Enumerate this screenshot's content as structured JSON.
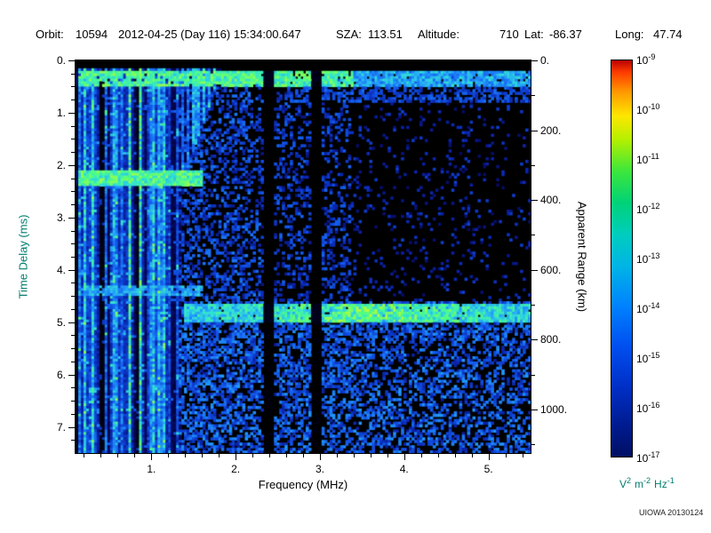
{
  "header": {
    "orbit_label": "Orbit:",
    "orbit_value": "10594",
    "datetime": "2012-04-25 (Day 116) 15:34:00.647",
    "sza_label": "SZA:",
    "sza_value": "113.51",
    "altitude_label": "Altitude:",
    "altitude_value": "710",
    "lat_label": "Lat:",
    "lat_value": "-86.37",
    "long_label": "Long:",
    "long_value": "47.74"
  },
  "chart_data": {
    "type": "heatmap",
    "xlabel": "Frequency (MHz)",
    "ylabel": "Time Delay (ms)",
    "y2label": "Apparent Range (km)",
    "x_range": [
      0.1,
      5.5
    ],
    "x_ticks": [
      "1.",
      "2.",
      "3.",
      "4.",
      "5."
    ],
    "x_tick_values": [
      1,
      2,
      3,
      4,
      5
    ],
    "y_range": [
      0,
      7.5
    ],
    "y_ticks": [
      "0.",
      "1.",
      "2.",
      "3.",
      "4.",
      "5.",
      "6.",
      "7."
    ],
    "y_tick_values": [
      0,
      1,
      2,
      3,
      4,
      5,
      6,
      7
    ],
    "y2_range": [
      0,
      1125
    ],
    "y2_ticks": [
      "0.",
      "200.",
      "400.",
      "600.",
      "800.",
      "1000."
    ],
    "y2_tick_values": [
      0,
      200,
      400,
      600,
      800,
      1000
    ],
    "plot_background": "#000000",
    "intensity_range": [
      "1e-17",
      "1e-9"
    ],
    "features": {
      "plasma_harmonic_stripes": {
        "freq_min": 0.1,
        "freq_max": 1.35,
        "description": "vertical cyan/green electron-plasma harmonic stripes spanning the full time-delay range below ~1.35 MHz"
      },
      "top_echo_band": {
        "delay_ms": 0.3,
        "description": "bright green/cyan horizontal band across all frequencies near 0.3 ms delay"
      },
      "left_band_upper": {
        "delay_ms": 2.25,
        "freq_max": 1.6
      },
      "left_band_lower": {
        "delay_ms": 4.4,
        "freq_max": 1.6
      },
      "bright_horizontal_band": {
        "delay_ms": 4.85,
        "freq_min": 1.4,
        "description": "cyan-green surface-echo band from ~1.5 to 5.5 MHz at ~4.85 ms"
      },
      "vertical_gaps_mhz": [
        2.4,
        2.95
      ],
      "noise_floor": "scattered blue speckle, denser below the 4.85 ms band, sparse/black in the upper-right quadrant"
    },
    "colorbar": {
      "ticks": [
        {
          "base": "10",
          "exp": "-9"
        },
        {
          "base": "10",
          "exp": "-10"
        },
        {
          "base": "10",
          "exp": "-11"
        },
        {
          "base": "10",
          "exp": "-12"
        },
        {
          "base": "10",
          "exp": "-13"
        },
        {
          "base": "10",
          "exp": "-14"
        },
        {
          "base": "10",
          "exp": "-15"
        },
        {
          "base": "10",
          "exp": "-16"
        },
        {
          "base": "10",
          "exp": "-17"
        }
      ],
      "unit_segments": [
        {
          "base": "V",
          "exp": "2"
        },
        {
          "base": "m",
          "exp": "-2"
        },
        {
          "base": "Hz",
          "exp": "-1"
        }
      ],
      "gradient": [
        {
          "c": "#b80000",
          "p": 0
        },
        {
          "c": "#ff3c00",
          "p": 3
        },
        {
          "c": "#ff9900",
          "p": 8
        },
        {
          "c": "#ffe600",
          "p": 14
        },
        {
          "c": "#b4f000",
          "p": 20
        },
        {
          "c": "#3ce63c",
          "p": 28
        },
        {
          "c": "#00d278",
          "p": 36
        },
        {
          "c": "#00cdbe",
          "p": 44
        },
        {
          "c": "#00b4e6",
          "p": 52
        },
        {
          "c": "#0082ff",
          "p": 62
        },
        {
          "c": "#004ff0",
          "p": 72
        },
        {
          "c": "#0030c8",
          "p": 82
        },
        {
          "c": "#001d96",
          "p": 91
        },
        {
          "c": "#000f64",
          "p": 100
        }
      ]
    }
  },
  "footer": {
    "credit": "UIOWA 20130124"
  }
}
